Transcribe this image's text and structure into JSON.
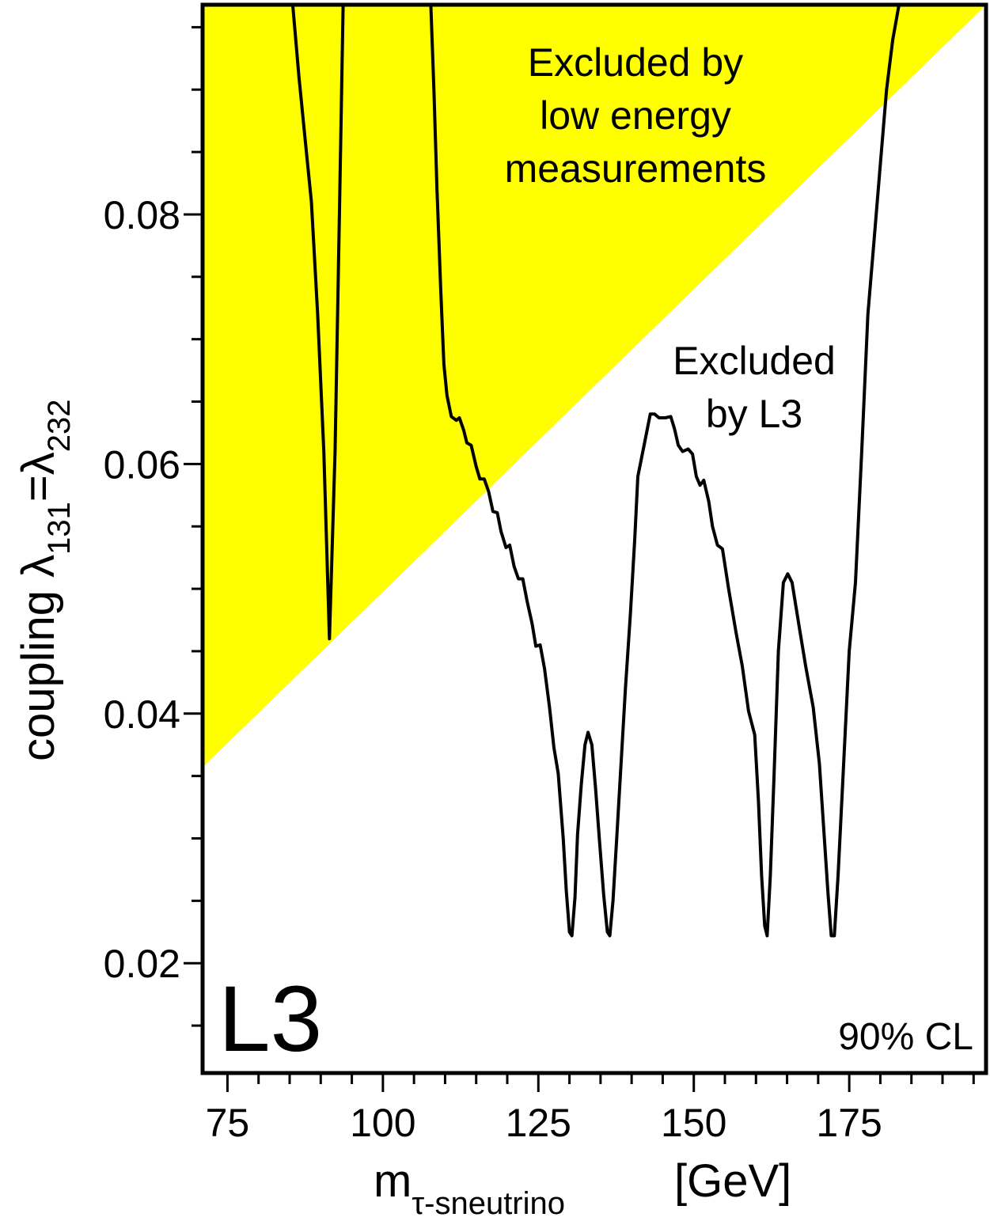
{
  "chart_data": {
    "type": "line",
    "title": "",
    "xlabel": {
      "main": "m",
      "sub": "τ-sneutrino",
      "unit": "[GeV]"
    },
    "ylabel": {
      "prefix": "coupling λ",
      "sub1": "131",
      "mid": "=λ",
      "sub2": "232"
    },
    "xlim": [
      71,
      197
    ],
    "ylim": [
      0.0112,
      0.0968
    ],
    "x_ticks": [
      {
        "value": 75,
        "label": "75"
      },
      {
        "value": 100,
        "label": "100"
      },
      {
        "value": 125,
        "label": "125"
      },
      {
        "value": 150,
        "label": "150"
      },
      {
        "value": 175,
        "label": "175"
      }
    ],
    "y_ticks": [
      {
        "value": 0.02,
        "label": "0.02"
      },
      {
        "value": 0.04,
        "label": "0.04"
      },
      {
        "value": 0.06,
        "label": "0.06"
      },
      {
        "value": 0.08,
        "label": "0.08"
      }
    ],
    "x_minor_step": 5,
    "y_minor_step": 0.005,
    "grid": false,
    "colors": {
      "shaded_region": "#ffff00",
      "curve": "#000000",
      "frame": "#000000"
    },
    "shaded_region": {
      "label": "Excluded by low energy measurements",
      "label_lines": [
        "Excluded by",
        "low energy",
        "measurements"
      ],
      "lower_boundary": [
        [
          71,
          0.0357
        ],
        [
          197,
          0.0968
        ]
      ]
    },
    "curve_label_lines": [
      "Excluded",
      "by L3"
    ],
    "logo": "L3",
    "cl_label": "90% CL",
    "series": [
      {
        "points": [
          [
            85.5,
            0.0968
          ],
          [
            86.5,
            0.091
          ],
          [
            87.5,
            0.086
          ],
          [
            88.5,
            0.081
          ],
          [
            89.5,
            0.072
          ],
          [
            90.5,
            0.061
          ],
          [
            91.4,
            0.046
          ],
          [
            92.3,
            0.061
          ],
          [
            93.0,
            0.08
          ],
          [
            93.6,
            0.0968
          ]
        ]
      },
      {
        "points": [
          [
            107.7,
            0.0968
          ],
          [
            108.2,
            0.09
          ],
          [
            108.7,
            0.082
          ],
          [
            109.3,
            0.074
          ],
          [
            109.8,
            0.068
          ],
          [
            110.3,
            0.0655
          ],
          [
            111.0,
            0.0638
          ],
          [
            111.8,
            0.0635
          ],
          [
            112.3,
            0.0637
          ],
          [
            113.0,
            0.0627
          ],
          [
            113.5,
            0.0617
          ],
          [
            114.2,
            0.0615
          ],
          [
            115.0,
            0.0598
          ],
          [
            115.6,
            0.0588
          ],
          [
            116.3,
            0.0588
          ],
          [
            117.0,
            0.0578
          ],
          [
            117.7,
            0.0562
          ],
          [
            118.4,
            0.0561
          ],
          [
            119.0,
            0.0546
          ],
          [
            119.8,
            0.0533
          ],
          [
            120.4,
            0.0535
          ],
          [
            121.1,
            0.0518
          ],
          [
            121.8,
            0.0508
          ],
          [
            122.5,
            0.0508
          ],
          [
            123.2,
            0.049
          ],
          [
            124.0,
            0.0472
          ],
          [
            124.6,
            0.0454
          ],
          [
            125.3,
            0.0455
          ],
          [
            126.0,
            0.0436
          ],
          [
            126.8,
            0.0405
          ],
          [
            127.5,
            0.0373
          ],
          [
            128.2,
            0.0352
          ],
          [
            129.0,
            0.03
          ],
          [
            129.5,
            0.0258
          ],
          [
            130.0,
            0.0225
          ],
          [
            130.4,
            0.0222
          ],
          [
            130.9,
            0.0253
          ],
          [
            131.3,
            0.0303
          ],
          [
            131.9,
            0.0343
          ],
          [
            132.5,
            0.0375
          ],
          [
            133.0,
            0.0385
          ],
          [
            133.6,
            0.0375
          ],
          [
            134.2,
            0.034
          ],
          [
            134.8,
            0.03
          ],
          [
            135.5,
            0.0255
          ],
          [
            136.1,
            0.0225
          ],
          [
            136.5,
            0.0222
          ],
          [
            137.0,
            0.025
          ],
          [
            137.6,
            0.03
          ],
          [
            138.3,
            0.036
          ],
          [
            139.0,
            0.042
          ],
          [
            139.8,
            0.048
          ],
          [
            140.5,
            0.054
          ],
          [
            141.0,
            0.059
          ],
          [
            142.0,
            0.0615
          ],
          [
            143.0,
            0.064
          ],
          [
            143.7,
            0.064
          ],
          [
            144.4,
            0.0637
          ],
          [
            145.4,
            0.0637
          ],
          [
            146.3,
            0.0638
          ],
          [
            146.9,
            0.0628
          ],
          [
            147.5,
            0.0615
          ],
          [
            148.2,
            0.061
          ],
          [
            149.1,
            0.0612
          ],
          [
            149.8,
            0.0608
          ],
          [
            150.4,
            0.059
          ],
          [
            151.0,
            0.0583
          ],
          [
            151.6,
            0.0587
          ],
          [
            152.4,
            0.057
          ],
          [
            153.0,
            0.055
          ],
          [
            153.8,
            0.0535
          ],
          [
            154.6,
            0.0532
          ],
          [
            155.6,
            0.05
          ],
          [
            156.8,
            0.0465
          ],
          [
            157.8,
            0.0438
          ],
          [
            158.8,
            0.0402
          ],
          [
            159.8,
            0.0383
          ],
          [
            160.4,
            0.033
          ],
          [
            160.9,
            0.027
          ],
          [
            161.4,
            0.023
          ],
          [
            161.8,
            0.0222
          ],
          [
            162.3,
            0.027
          ],
          [
            162.9,
            0.035
          ],
          [
            163.6,
            0.045
          ],
          [
            164.4,
            0.0505
          ],
          [
            165.1,
            0.0512
          ],
          [
            165.8,
            0.0505
          ],
          [
            167.0,
            0.0468
          ],
          [
            168.0,
            0.0438
          ],
          [
            169.2,
            0.0405
          ],
          [
            170.2,
            0.036
          ],
          [
            171.0,
            0.03
          ],
          [
            171.6,
            0.0255
          ],
          [
            172.1,
            0.0222
          ],
          [
            172.6,
            0.0222
          ],
          [
            173.2,
            0.027
          ],
          [
            174.0,
            0.035
          ],
          [
            175.0,
            0.045
          ],
          [
            176.0,
            0.0505
          ],
          [
            177.0,
            0.061
          ],
          [
            178.0,
            0.072
          ],
          [
            179.0,
            0.078
          ],
          [
            180.0,
            0.084
          ],
          [
            181.0,
            0.09
          ],
          [
            182.0,
            0.094
          ],
          [
            183.0,
            0.0968
          ]
        ]
      }
    ]
  }
}
